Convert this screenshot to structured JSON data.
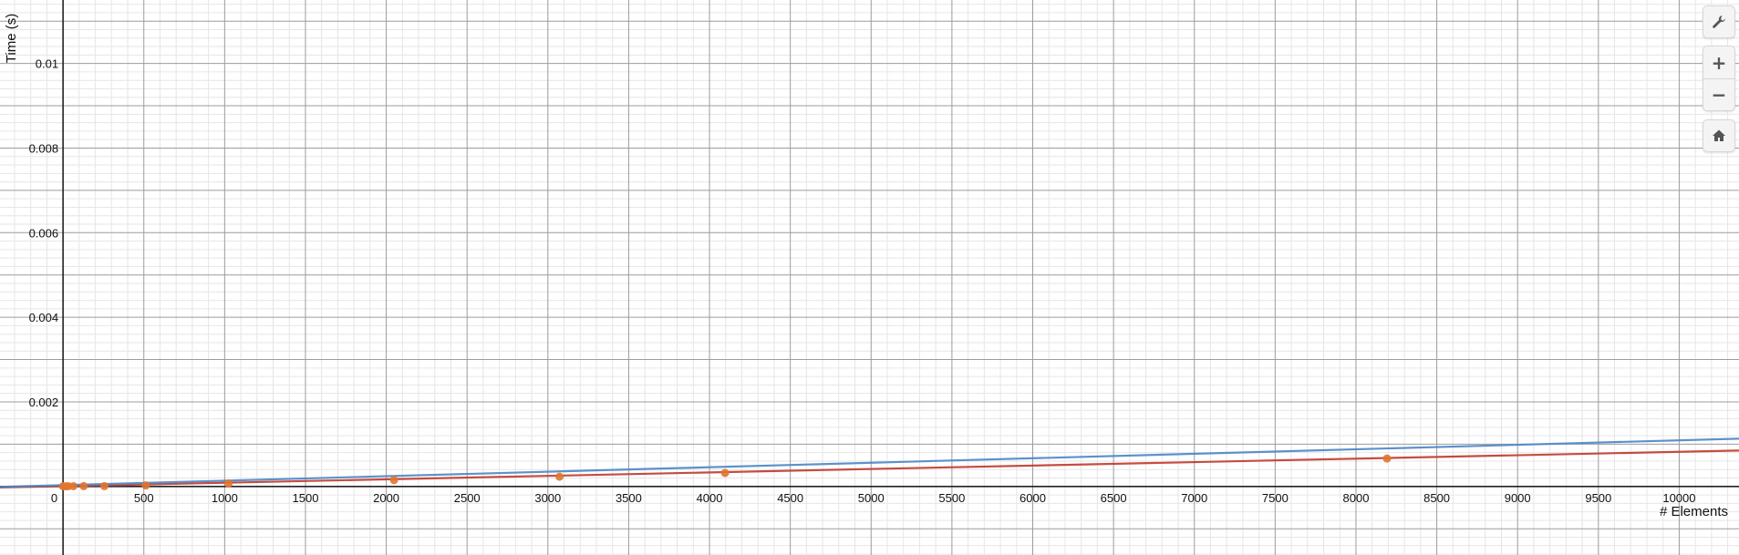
{
  "controls": {
    "settings_icon": "wrench-icon",
    "zoom_in_label": "+",
    "zoom_out_label": "−",
    "home_icon": "home-icon"
  },
  "chart_data": {
    "type": "scatter",
    "xlabel": "# Elements",
    "ylabel": "Time (s)",
    "xlim": [
      -390,
      10370
    ],
    "ylim": [
      -0.00162,
      0.0115
    ],
    "x_ticks": [
      0,
      500,
      1000,
      1500,
      2000,
      2500,
      3000,
      3500,
      4000,
      4500,
      5000,
      5500,
      6000,
      6500,
      7000,
      7500,
      8000,
      8500,
      9000,
      9500,
      10000
    ],
    "x_tick_labels": [
      "0",
      "500",
      "1000",
      "1500",
      "2000",
      "2500",
      "3000",
      "3500",
      "4000",
      "4500",
      "5000",
      "5500",
      "6000",
      "6500",
      "7000",
      "7500",
      "8000",
      "8500",
      "9000",
      "9500",
      "10000"
    ],
    "y_ticks": [
      0.002,
      0.004,
      0.006,
      0.008,
      0.01
    ],
    "y_tick_labels": [
      "0.002",
      "0.004",
      "0.006",
      "0.008",
      "0.01"
    ],
    "grid": true,
    "points": {
      "color": "#e0762f",
      "x": [
        0,
        16,
        32,
        64,
        128,
        256,
        512,
        1024,
        2048,
        3072,
        4096,
        8192
      ],
      "y": [
        5e-06,
        5e-06,
        6e-06,
        7e-06,
        8e-06,
        9e-06,
        2.5e-05,
        7e-05,
        0.00015,
        0.00023,
        0.00032,
        0.00066
      ]
    },
    "series": [
      {
        "color": "#c0392b",
        "x": [
          -390,
          10370
        ],
        "y": [
          -2.5e-05,
          0.00085
        ]
      },
      {
        "color": "#4a86c5",
        "x": [
          -390,
          10370
        ],
        "y": [
          -1e-05,
          0.00113
        ]
      }
    ]
  }
}
